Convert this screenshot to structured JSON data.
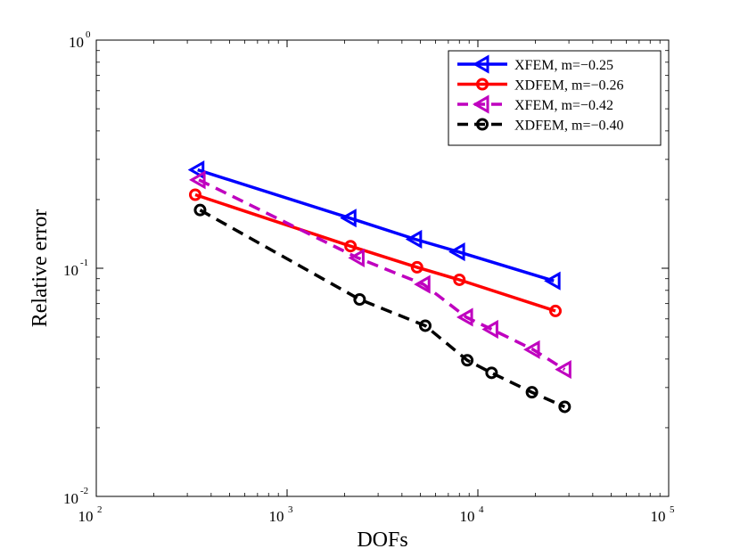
{
  "chart_data": {
    "type": "line",
    "title": "",
    "xlabel": "DOFs",
    "ylabel": "Relative error",
    "xscale": "log",
    "yscale": "log",
    "xlim": [
      100,
      100000
    ],
    "ylim": [
      0.01,
      1
    ],
    "x_ticks": [
      {
        "base": "10",
        "exp": "2",
        "value": 100
      },
      {
        "base": "10",
        "exp": "3",
        "value": 1000
      },
      {
        "base": "10",
        "exp": "4",
        "value": 10000
      },
      {
        "base": "10",
        "exp": "5",
        "value": 100000
      }
    ],
    "y_ticks": [
      {
        "base": "10",
        "exp": "-2",
        "value": 0.01
      },
      {
        "base": "10",
        "exp": "-1",
        "value": 0.1
      },
      {
        "base": "10",
        "exp": "0",
        "value": 1
      }
    ],
    "grid": false,
    "legend_position": "top-right",
    "series": [
      {
        "name": "XFEM, m=−0.25",
        "color": "#0000ff",
        "dash": "solid",
        "marker": "triangle-left",
        "x": [
          340,
          2130,
          4700,
          7900,
          25000
        ],
        "y": [
          0.27,
          0.166,
          0.134,
          0.118,
          0.088
        ]
      },
      {
        "name": "XDFEM, m=−0.26",
        "color": "#ff0000",
        "dash": "solid",
        "marker": "circle",
        "x": [
          330,
          2150,
          4800,
          8000,
          25500
        ],
        "y": [
          0.21,
          0.125,
          0.101,
          0.089,
          0.065
        ]
      },
      {
        "name": "XFEM, m=−0.42",
        "color": "#bf00bf",
        "dash": "dashed",
        "marker": "triangle-left",
        "x": [
          345,
          2350,
          5200,
          8700,
          11800,
          19500,
          28500
        ],
        "y": [
          0.244,
          0.111,
          0.085,
          0.061,
          0.054,
          0.044,
          0.036
        ]
      },
      {
        "name": "XDFEM, m=−0.40",
        "color": "#000000",
        "dash": "dashed",
        "marker": "circle",
        "x": [
          350,
          2400,
          5300,
          8800,
          11800,
          19200,
          28500
        ],
        "y": [
          0.18,
          0.073,
          0.056,
          0.0395,
          0.0348,
          0.0286,
          0.0247
        ]
      }
    ]
  }
}
